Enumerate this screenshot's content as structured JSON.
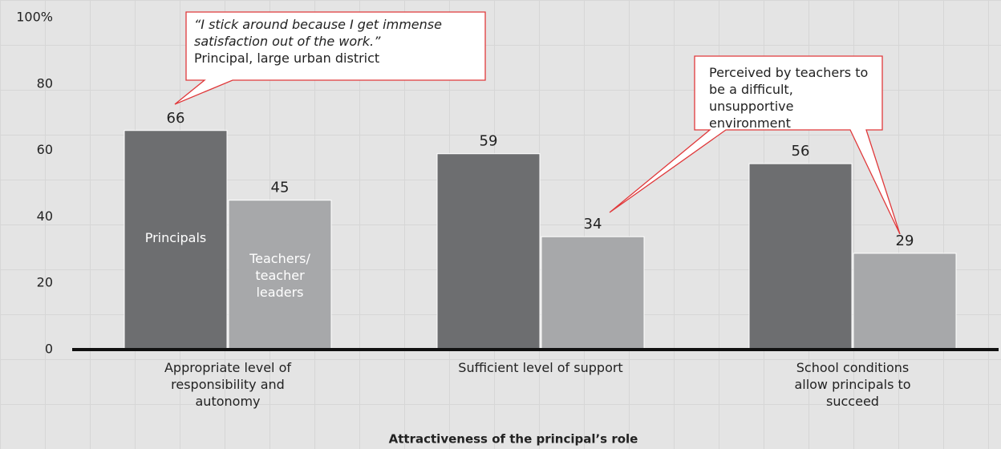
{
  "chart_data": {
    "type": "bar",
    "x_label": "Attractiveness of the principal’s role",
    "categories": [
      "Appropriate level of responsibility and autonomy",
      "Sufficient level of support",
      "School conditions allow principals to succeed"
    ],
    "series": [
      {
        "name": "Principals",
        "color": "#6d6e70",
        "values": [
          66,
          59,
          56
        ]
      },
      {
        "name": "Teachers/ teacher leaders",
        "color": "#a7a8aa",
        "values": [
          45,
          34,
          29
        ]
      }
    ],
    "ylim": [
      0,
      100
    ],
    "yticks": [
      0,
      20,
      40,
      60,
      80,
      {
        "value": 100,
        "label": "100%"
      }
    ],
    "annotations": [
      {
        "quote": "“I stick around because I get immense satisfaction out of the work.”",
        "source": "Principal, large urban district"
      },
      {
        "text": "Perceived by teachers to be a difficult, unsupportive environment"
      }
    ]
  }
}
